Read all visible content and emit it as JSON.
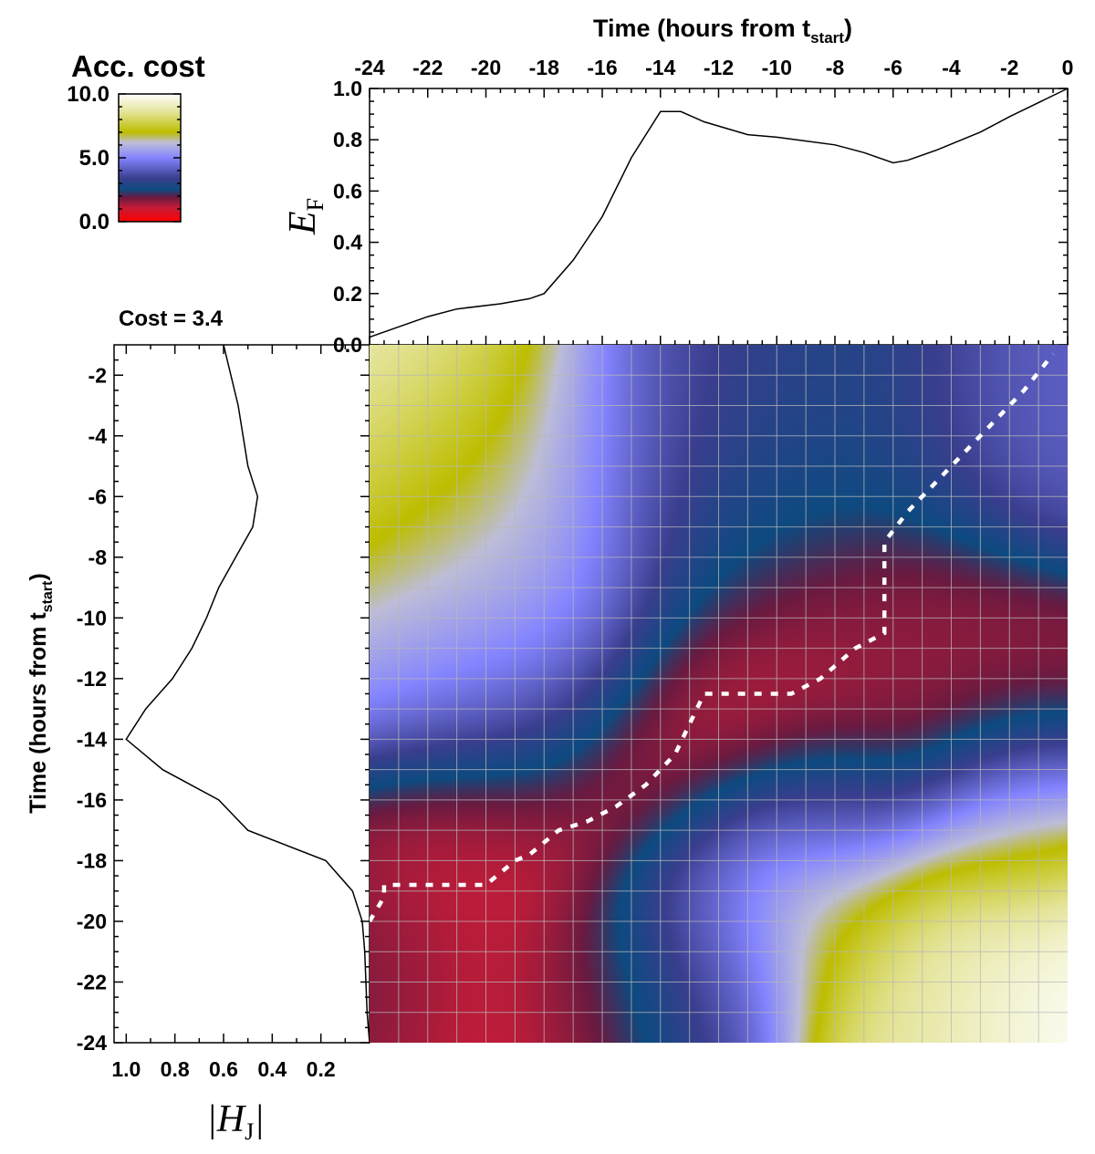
{
  "colorbar": {
    "title": "Acc. cost",
    "ticks": [
      "10.0",
      "5.0",
      "0.0"
    ],
    "tick_values": [
      10,
      5,
      0
    ],
    "range": [
      0,
      10
    ],
    "stops": [
      {
        "v": 0.0,
        "color": "#ff0000"
      },
      {
        "v": 1.1,
        "color": "#c41c38"
      },
      {
        "v": 1.9,
        "color": "#6a1a40"
      },
      {
        "v": 2.5,
        "color": "#0d4a80"
      },
      {
        "v": 3.4,
        "color": "#3a3e8e"
      },
      {
        "v": 5.0,
        "color": "#8484ff"
      },
      {
        "v": 6.2,
        "color": "#bdbdd8"
      },
      {
        "v": 7.0,
        "color": "#bdbd00"
      },
      {
        "v": 8.6,
        "color": "#e4e49a"
      },
      {
        "v": 10.0,
        "color": "#ffffff"
      }
    ]
  },
  "cost_label": "Cost = 3.4",
  "chart_data": [
    {
      "type": "line",
      "name": "top-panel",
      "xlabel": "Time (hours from t",
      "xlabel_sub": "start",
      "xlabel_end": ")",
      "ylabel": "E",
      "ylabel_sub": "F",
      "x_ticks": [
        "-24",
        "-22",
        "-20",
        "-18",
        "-16",
        "-14",
        "-12",
        "-10",
        "-8",
        "-6",
        "-4",
        "-2",
        "0"
      ],
      "y_ticks": [
        "0.0",
        "0.2",
        "0.4",
        "0.6",
        "0.8",
        "1.0"
      ],
      "xlim": [
        -24,
        0
      ],
      "ylim": [
        0,
        1.0
      ],
      "x": [
        -24,
        -23.5,
        -22,
        -21,
        -19.5,
        -18.5,
        -18,
        -17,
        -16,
        -15,
        -14,
        -13.3,
        -12.5,
        -11,
        -10,
        -8,
        -7,
        -6,
        -5.5,
        -4.5,
        -3,
        -2,
        0
      ],
      "y": [
        0.03,
        0.05,
        0.11,
        0.14,
        0.16,
        0.18,
        0.2,
        0.33,
        0.5,
        0.73,
        0.91,
        0.91,
        0.87,
        0.82,
        0.81,
        0.78,
        0.75,
        0.71,
        0.72,
        0.76,
        0.83,
        0.89,
        1.0
      ]
    },
    {
      "type": "line",
      "name": "left-panel",
      "xlabel": "|H",
      "xlabel_sub": "J",
      "xlabel_end": "|",
      "ylabel": "Time (hours from t",
      "ylabel_sub": "start",
      "ylabel_end": ")",
      "x_ticks": [
        "1.0",
        "0.8",
        "0.6",
        "0.4",
        "0.2"
      ],
      "x_tick_values": [
        1.0,
        0.8,
        0.6,
        0.4,
        0.2
      ],
      "y_ticks": [
        "-2",
        "-4",
        "-6",
        "-8",
        "-10",
        "-12",
        "-14",
        "-16",
        "-18",
        "-20",
        "-22",
        "-24"
      ],
      "xlim": [
        1.05,
        0
      ],
      "ylim": [
        -24,
        -1
      ],
      "y": [
        -1,
        -3,
        -5,
        -6,
        -7,
        -8,
        -9,
        -10,
        -11,
        -12,
        -13,
        -14,
        -15,
        -16,
        -17,
        -18,
        -19,
        -20,
        -21,
        -22,
        -23,
        -24
      ],
      "x": [
        0.6,
        0.54,
        0.5,
        0.46,
        0.48,
        0.55,
        0.62,
        0.67,
        0.73,
        0.81,
        0.92,
        1.0,
        0.85,
        0.62,
        0.5,
        0.18,
        0.07,
        0.03,
        0.02,
        0.015,
        0.01,
        0.0
      ]
    },
    {
      "type": "heatmap",
      "name": "accumulated-cost",
      "colorbar_title": "Acc. cost",
      "x_range": [
        -24,
        0
      ],
      "y_range": [
        -24,
        -1
      ],
      "centers": [
        {
          "x": -23.5,
          "y": -1.5,
          "v": 9.5,
          "r": 5.0
        },
        {
          "x": -22.0,
          "y": -3.5,
          "v": 8.0,
          "r": 5.0
        },
        {
          "x": -21.5,
          "y": -6.5,
          "v": 7.0,
          "r": 4.0
        },
        {
          "x": -20.0,
          "y": -10.0,
          "v": 5.0,
          "r": 4.5
        },
        {
          "x": -19.0,
          "y": -13.0,
          "v": 5.0,
          "r": 4.0
        },
        {
          "x": -18.0,
          "y": -6.0,
          "v": 5.5,
          "r": 4.5
        },
        {
          "x": -13.0,
          "y": -3.0,
          "v": 3.4,
          "r": 5.0
        },
        {
          "x": -7.0,
          "y": -3.0,
          "v": 2.8,
          "r": 4.0
        },
        {
          "x": -1.5,
          "y": -3.0,
          "v": 4.2,
          "r": 4.0
        },
        {
          "x": -12.0,
          "y": -7.0,
          "v": 2.5,
          "r": 4.0
        },
        {
          "x": -7.0,
          "y": -11.0,
          "v": 1.6,
          "r": 5.0
        },
        {
          "x": -11.0,
          "y": -13.0,
          "v": 0.9,
          "r": 4.0
        },
        {
          "x": -15.0,
          "y": -15.0,
          "v": 0.7,
          "r": 3.5
        },
        {
          "x": -3.0,
          "y": -13.5,
          "v": 1.5,
          "r": 4.0
        },
        {
          "x": -19.0,
          "y": -16.5,
          "v": 0.5,
          "r": 3.5
        },
        {
          "x": -21.0,
          "y": -18.0,
          "v": 0.9,
          "r": 3.0
        },
        {
          "x": -23.0,
          "y": -21.0,
          "v": 1.8,
          "r": 3.5
        },
        {
          "x": -19.0,
          "y": -22.5,
          "v": 0.8,
          "r": 3.5
        },
        {
          "x": -16.0,
          "y": -22.0,
          "v": 2.0,
          "r": 3.0
        },
        {
          "x": -13.0,
          "y": -21.0,
          "v": 3.6,
          "r": 3.5
        },
        {
          "x": -11.0,
          "y": -18.5,
          "v": 5.5,
          "r": 3.5
        },
        {
          "x": -8.0,
          "y": -19.0,
          "v": 7.5,
          "r": 3.0
        },
        {
          "x": -5.0,
          "y": -22.0,
          "v": 8.5,
          "r": 3.5
        },
        {
          "x": -1.5,
          "y": -21.0,
          "v": 10.0,
          "r": 4.0
        },
        {
          "x": -2.0,
          "y": -17.0,
          "v": 7.0,
          "r": 3.0
        },
        {
          "x": -8.0,
          "y": -16.3,
          "v": 3.0,
          "r": 2.5
        }
      ],
      "path_x": [
        -24,
        -23.5,
        -23.5,
        -20.0,
        -19.0,
        -18.5,
        -17.5,
        -16.5,
        -15.5,
        -14.5,
        -13.5,
        -12.5,
        -9.5,
        -8.5,
        -7.3,
        -6.3,
        -6.3,
        -5.5,
        -4.5,
        -3.5,
        -2.5,
        -1.5,
        -0.5
      ],
      "path_y": [
        -20.0,
        -19.2,
        -18.8,
        -18.8,
        -18.0,
        -17.8,
        -17.0,
        -16.7,
        -16.2,
        -15.5,
        -14.5,
        -12.5,
        -12.5,
        -12.0,
        -11.0,
        -10.5,
        -7.5,
        -6.5,
        -5.5,
        -4.5,
        -3.5,
        -2.5,
        -1.3
      ]
    }
  ]
}
